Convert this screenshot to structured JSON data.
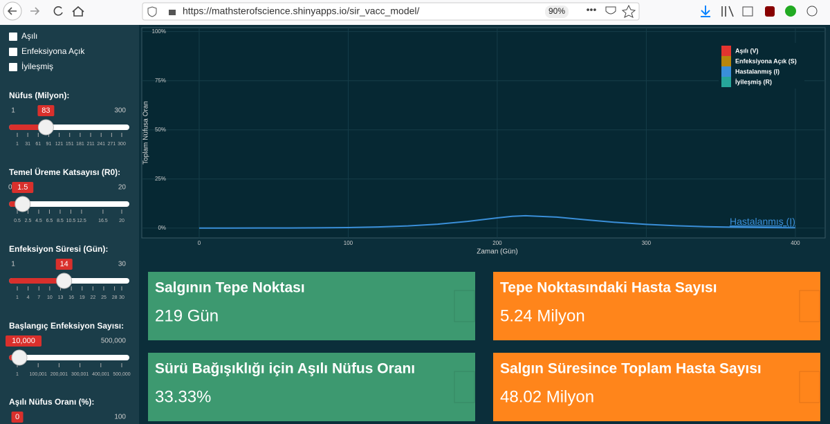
{
  "browser": {
    "url": "https://mathsterofscience.shinyapps.io/sir_vacc_model/",
    "zoom": "90%"
  },
  "sidebar": {
    "checkboxes": [
      "Aşılı",
      "Enfeksiyona Açık",
      "İyileşmiş"
    ],
    "sliders": [
      {
        "label": "Nüfus (Milyon):",
        "min": 1,
        "max": 300,
        "value": 83,
        "ticks": [
          1,
          31,
          61,
          91,
          121,
          151,
          181,
          211,
          241,
          271,
          300
        ]
      },
      {
        "label": "Temel Üreme Katsayısı (R0):",
        "min": 0.5,
        "max": 20,
        "value": 1.5,
        "ticks": [
          0.5,
          2.5,
          4.5,
          6.5,
          8.5,
          10.5,
          12.5,
          16.5,
          20
        ]
      },
      {
        "label": "Enfeksiyon Süresi (Gün):",
        "min": 1,
        "max": 30,
        "value": 14,
        "ticks": [
          1,
          4,
          7,
          10,
          13,
          16,
          19,
          22,
          25,
          28,
          30
        ]
      },
      {
        "label": "Başlangıç Enfeksiyon Sayısı:",
        "min": 1,
        "max": {
          "value": 500000,
          "label": "500,000"
        },
        "value": {
          "value": 10000,
          "label": "10,000"
        },
        "ticks": [
          1,
          {
            "value": 100001,
            "label": "100,001"
          },
          {
            "value": 200001,
            "label": "200,001"
          },
          {
            "value": 300001,
            "label": "300,001"
          },
          {
            "value": 400001,
            "label": "400,001"
          },
          {
            "value": 500000,
            "label": "500,000"
          }
        ]
      },
      {
        "label": "Aşılı Nüfus Oranı (%):",
        "min": 0,
        "max": 100,
        "value": 0
      }
    ]
  },
  "chart_data": {
    "type": "line",
    "x_label": "Zaman (Gün)",
    "y_label": "Toplam Nüfusa Oran",
    "x": [
      0,
      20,
      40,
      60,
      80,
      100,
      120,
      140,
      160,
      180,
      200,
      210,
      219,
      240,
      260,
      280,
      300,
      320,
      340,
      360,
      380,
      400
    ],
    "series": [
      {
        "name": "Hastalanmış (I)",
        "color": "#3a8fd9",
        "values": [
          0.01,
          0.02,
          0.04,
          0.08,
          0.15,
          0.3,
          0.6,
          1.1,
          2.0,
          3.4,
          5.2,
          6.0,
          6.31,
          5.6,
          4.2,
          2.9,
          1.9,
          1.2,
          0.7,
          0.45,
          0.28,
          0.17
        ]
      }
    ],
    "xlim": [
      -38.5,
      420
    ],
    "ylim": [
      -5,
      102
    ],
    "xticks": [
      0,
      100,
      200,
      300,
      400
    ],
    "yticks": [
      {
        "value": 0,
        "label": "0%"
      },
      {
        "value": 25,
        "label": "25%"
      },
      {
        "value": 50,
        "label": "50%"
      },
      {
        "value": 75,
        "label": "75%"
      },
      {
        "value": 100,
        "label": "100%"
      }
    ],
    "grid": true,
    "legend": {
      "position": "top-right",
      "entries": [
        {
          "name": "Aşılı (V)",
          "color": "#e3342f"
        },
        {
          "name": "Enfeksiyona Açık (S)",
          "color": "#b8860b"
        },
        {
          "name": "Hastalanmış (I)",
          "color": "#3a8fd9"
        },
        {
          "name": "İyileşmiş (R)",
          "color": "#26a69a"
        }
      ]
    }
  },
  "value_boxes": [
    {
      "title": "Salgının Tepe Noktası",
      "value": "219 Gün",
      "color": "#3d9970"
    },
    {
      "title": "Tepe Noktasındaki Hasta Sayısı",
      "value": "5.24 Milyon",
      "color": "#ff851b"
    },
    {
      "title": "Sürü Bağışıklığı için Aşılı Nüfus Oranı",
      "value": "33.33%",
      "color": "#3d9970"
    },
    {
      "title": "Salgın Süresince Toplam Hasta Sayısı",
      "value": "48.02 Milyon",
      "color": "#ff851b"
    }
  ]
}
